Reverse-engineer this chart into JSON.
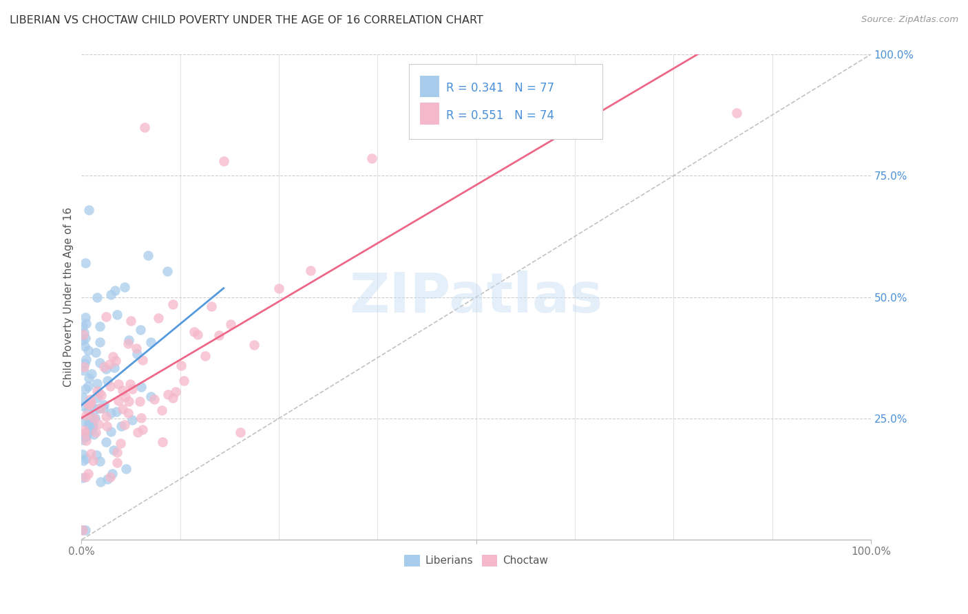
{
  "title": "LIBERIAN VS CHOCTAW CHILD POVERTY UNDER THE AGE OF 16 CORRELATION CHART",
  "source": "Source: ZipAtlas.com",
  "ylabel": "Child Poverty Under the Age of 16",
  "watermark": "ZIPatlas",
  "xlim": [
    0,
    1
  ],
  "ylim": [
    0,
    1
  ],
  "yticks_right": [
    0.25,
    0.5,
    0.75,
    1.0
  ],
  "ytick_labels_right": [
    "25.0%",
    "50.0%",
    "75.0%",
    "100.0%"
  ],
  "liberian_color": "#a8ccec",
  "choctaw_color": "#f5b8ca",
  "liberian_line_color": "#5599dd",
  "choctaw_line_color": "#ee6688",
  "legend_color": "#4a90d9",
  "liberian_R": 0.341,
  "liberian_N": 77,
  "choctaw_R": 0.551,
  "choctaw_N": 74,
  "background_color": "#ffffff",
  "grid_color": "#cccccc",
  "title_color": "#333333",
  "source_color": "#999999",
  "axis_label_color": "#555555",
  "tick_label_color": "#777777",
  "right_tick_color": "#4a90d9"
}
